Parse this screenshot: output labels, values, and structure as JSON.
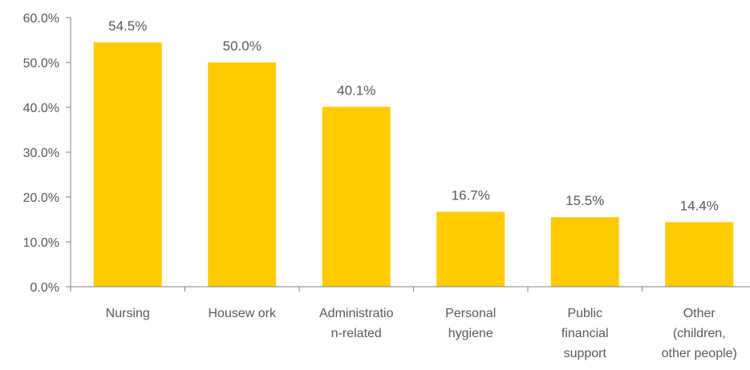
{
  "chart_data": {
    "type": "bar",
    "categories": [
      [
        "Nursing"
      ],
      [
        "Housew ork"
      ],
      [
        "Administratio",
        "n-related"
      ],
      [
        "Personal",
        "hygiene"
      ],
      [
        "Public",
        "financial",
        "support"
      ],
      [
        "Other",
        "(children,",
        "other people)"
      ]
    ],
    "values": [
      54.5,
      50.0,
      40.1,
      16.7,
      15.5,
      14.4
    ],
    "value_labels": [
      "54.5%",
      "50.0%",
      "40.1%",
      "16.7%",
      "15.5%",
      "14.4%"
    ],
    "ylim": [
      0,
      60
    ],
    "y_ticks": [
      "0.0%",
      "10.0%",
      "20.0%",
      "30.0%",
      "40.0%",
      "50.0%",
      "60.0%"
    ],
    "title": "",
    "xlabel": "",
    "ylabel": "",
    "grid": false,
    "legend": "none",
    "colors": {
      "bar": "#FFCC00",
      "axis": "#808080",
      "text": "#595959"
    }
  }
}
